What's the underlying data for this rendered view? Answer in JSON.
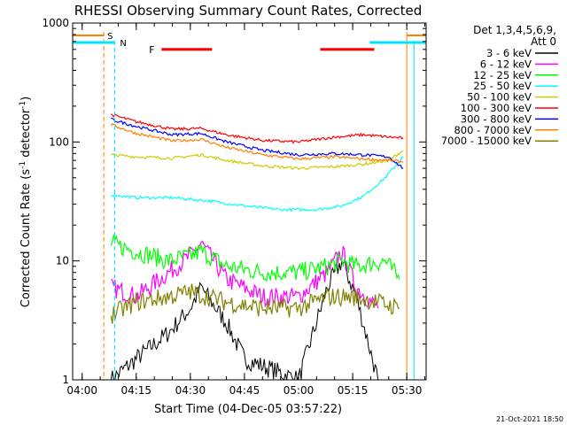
{
  "chart_data": {
    "type": "line",
    "title": "RHESSI Observing Summary Count Rates, Corrected",
    "xlabel": "Start Time (04-Dec-05 03:57:22)",
    "ylabel_main": "Corrected Count Rate (s",
    "ylabel_sup1": "-1",
    "ylabel_mid": " detector",
    "ylabel_sup2": "-1",
    "ylabel_end": ")",
    "yscale": "log",
    "ylim": [
      1,
      1000
    ],
    "xlim": [
      "03:57:22",
      "05:35:22"
    ],
    "x_ticks": [
      "04:00",
      "04:15",
      "04:30",
      "04:45",
      "05:00",
      "05:15",
      "05:30"
    ],
    "y_ticks": [
      "1",
      "10",
      "100",
      "1000"
    ],
    "detectors": "Det 1,3,4,5,6,9,",
    "attenuator": "Att 0",
    "timestamp": "21-Oct-2021 18:50",
    "markers": {
      "S": {
        "label": "S",
        "color": "#ff8000",
        "times": [
          "04:06",
          "05:30"
        ]
      },
      "N": {
        "label": "N",
        "color": "#00e5ff",
        "times": [
          "04:09",
          "05:32"
        ]
      },
      "F": {
        "label": "F",
        "color": "#ff0000",
        "ranges": [
          [
            "04:22",
            "04:36"
          ],
          [
            "05:06",
            "05:21"
          ]
        ],
        "level": 600
      }
    },
    "legend_position": "right",
    "series": [
      {
        "name": "3 - 6 keV",
        "color": "#000000",
        "x": [
          "04:08",
          "04:15",
          "04:24",
          "04:30",
          "04:33",
          "04:40",
          "04:45",
          "05:00",
          "05:08",
          "05:12",
          "05:16",
          "05:22"
        ],
        "values": [
          1,
          1.5,
          2.5,
          4,
          6,
          3,
          1.5,
          1,
          6,
          10,
          5,
          1
        ]
      },
      {
        "name": "6 - 12 keV",
        "color": "#ff00ff",
        "x": [
          "04:08",
          "04:15",
          "04:24",
          "04:30",
          "04:33",
          "04:40",
          "04:50",
          "05:00",
          "05:08",
          "05:12",
          "05:16",
          "05:22"
        ],
        "values": [
          6,
          5,
          8,
          11,
          14,
          7,
          5,
          5,
          8,
          12,
          6,
          4
        ]
      },
      {
        "name": "12 - 25 keV",
        "color": "#00ff00",
        "x": [
          "04:08",
          "04:15",
          "04:24",
          "04:30",
          "04:33",
          "04:40",
          "04:50",
          "05:00",
          "05:08",
          "05:12",
          "05:16",
          "05:24",
          "05:28"
        ],
        "values": [
          14,
          12,
          10,
          11,
          12,
          9,
          8,
          8,
          9,
          10,
          9,
          10,
          7
        ]
      },
      {
        "name": "25 - 50 keV",
        "color": "#00ffff",
        "x": [
          "04:08",
          "04:15",
          "04:25",
          "04:35",
          "04:45",
          "04:55",
          "05:05",
          "05:12",
          "05:18",
          "05:24",
          "05:29"
        ],
        "values": [
          36,
          34,
          34,
          32,
          29,
          27,
          27,
          29,
          35,
          50,
          75
        ]
      },
      {
        "name": "50 - 100 keV",
        "color": "#cccc00",
        "x": [
          "04:08",
          "04:15",
          "04:25",
          "04:33",
          "04:40",
          "04:50",
          "05:00",
          "05:10",
          "05:18",
          "05:25",
          "05:29"
        ],
        "values": [
          78,
          75,
          73,
          78,
          70,
          63,
          60,
          62,
          65,
          70,
          85
        ]
      },
      {
        "name": "100 - 300 keV",
        "color": "#ff0000",
        "x": [
          "04:08",
          "04:15",
          "04:25",
          "04:33",
          "04:40",
          "04:50",
          "05:00",
          "05:10",
          "05:18",
          "05:25",
          "05:29"
        ],
        "values": [
          170,
          148,
          128,
          130,
          115,
          103,
          100,
          110,
          115,
          110,
          108
        ]
      },
      {
        "name": "300 - 800 keV",
        "color": "#0000ff",
        "x": [
          "04:08",
          "04:15",
          "04:25",
          "04:33",
          "04:40",
          "04:50",
          "05:00",
          "05:10",
          "05:18",
          "05:25",
          "05:29"
        ],
        "values": [
          155,
          135,
          115,
          118,
          100,
          85,
          78,
          80,
          78,
          75,
          60
        ]
      },
      {
        "name": "800 - 7000 keV",
        "color": "#ff8000",
        "x": [
          "04:08",
          "04:15",
          "04:25",
          "04:33",
          "04:40",
          "04:50",
          "05:00",
          "05:10",
          "05:18",
          "05:25",
          "05:29"
        ],
        "values": [
          140,
          118,
          102,
          105,
          90,
          78,
          72,
          75,
          72,
          70,
          68
        ]
      },
      {
        "name": "7000 - 15000 keV",
        "color": "#808000",
        "x": [
          "04:08",
          "04:15",
          "04:24",
          "04:30",
          "04:40",
          "04:50",
          "05:00",
          "05:08",
          "05:15",
          "05:22",
          "05:28"
        ],
        "values": [
          3.5,
          4.5,
          5,
          5.5,
          4.5,
          4,
          4,
          5,
          5,
          4.5,
          4
        ]
      }
    ]
  }
}
